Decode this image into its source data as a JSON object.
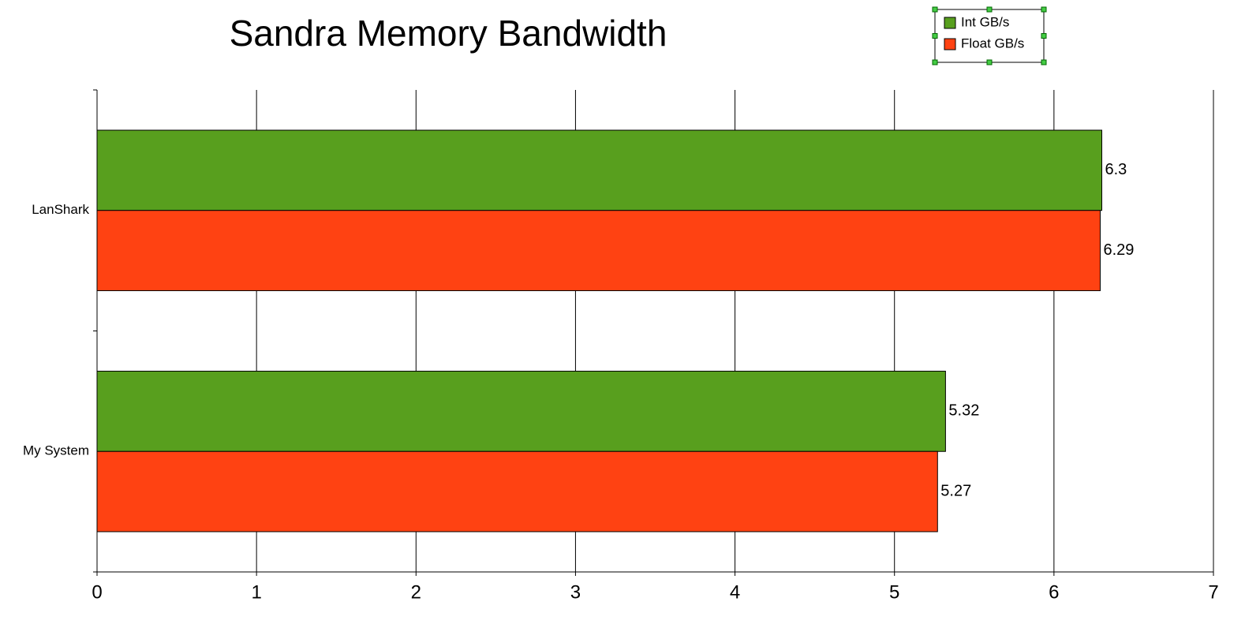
{
  "chart_data": {
    "type": "hbar",
    "title": "Sandra Memory Bandwidth",
    "categories": [
      "LanShark",
      "My System"
    ],
    "series": [
      {
        "name": "Int GB/s",
        "color": "#589f1e",
        "values": [
          6.3,
          5.32
        ]
      },
      {
        "name": "Float GB/s",
        "color": "#ff4212",
        "values": [
          6.29,
          5.27
        ]
      }
    ],
    "xlim": [
      0,
      7
    ],
    "xticks": [
      0,
      1,
      2,
      3,
      4,
      5,
      6,
      7
    ],
    "grid": true,
    "legend": "top-right"
  }
}
